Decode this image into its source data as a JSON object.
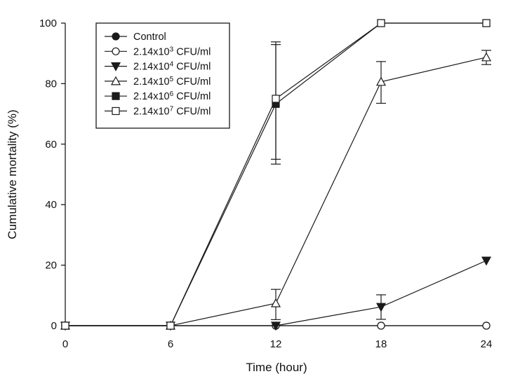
{
  "chart_data": {
    "type": "line",
    "title": "",
    "xlabel": "Time (hour)",
    "ylabel": "Cumulative mortality (%)",
    "x": [
      0,
      6,
      12,
      18,
      24
    ],
    "xticks": [
      "0",
      "6",
      "12",
      "18",
      "24"
    ],
    "yticks": [
      "0",
      "20",
      "40",
      "60",
      "80",
      "100"
    ],
    "xlim": [
      0,
      24
    ],
    "ylim": [
      0,
      100
    ],
    "grid": false,
    "legend_position": "upper left",
    "series": [
      {
        "name": "Control",
        "sup": "",
        "marker": "filled-circle",
        "values": [
          0,
          0,
          0,
          0,
          0
        ],
        "err_low": [
          null,
          null,
          null,
          null,
          null
        ],
        "err_high": [
          null,
          null,
          null,
          null,
          null
        ]
      },
      {
        "name": "2.14x10",
        "sup": "3",
        "unit": " CFU/ml",
        "marker": "open-circle",
        "values": [
          0,
          0,
          0,
          0,
          0
        ],
        "err_low": [
          null,
          null,
          null,
          null,
          null
        ],
        "err_high": [
          null,
          null,
          null,
          null,
          null
        ]
      },
      {
        "name": "2.14x10",
        "sup": "4",
        "unit": " CFU/ml",
        "marker": "filled-triangle-down",
        "values": [
          0,
          0,
          0,
          6.2,
          21.5
        ],
        "err_low": [
          null,
          null,
          null,
          2.1,
          null
        ],
        "err_high": [
          null,
          null,
          null,
          10.2,
          null
        ]
      },
      {
        "name": "2.14x10",
        "sup": "5",
        "unit": " CFU/ml",
        "marker": "open-triangle-up",
        "values": [
          0,
          0,
          7.4,
          80.6,
          88.7
        ],
        "err_low": [
          null,
          null,
          2.0,
          73.5,
          86.3
        ],
        "err_high": [
          null,
          null,
          12.0,
          87.3,
          91.0
        ]
      },
      {
        "name": "2.14x10",
        "sup": "6",
        "unit": " CFU/ml",
        "marker": "filled-square",
        "values": [
          0,
          0,
          73.3,
          100,
          100
        ],
        "err_low": [
          null,
          null,
          53.4,
          null,
          null
        ],
        "err_high": [
          null,
          null,
          92.9,
          null,
          null
        ]
      },
      {
        "name": "2.14x10",
        "sup": "7",
        "unit": " CFU/ml",
        "marker": "open-square",
        "values": [
          0,
          0,
          75.0,
          100,
          100
        ],
        "err_low": [
          null,
          null,
          55.0,
          null,
          null
        ],
        "err_high": [
          null,
          null,
          93.8,
          null,
          null
        ]
      }
    ]
  },
  "legend": {
    "items": [
      {
        "label": "Control",
        "sup": "",
        "unit": ""
      },
      {
        "label": "2.14x10",
        "sup": "3",
        "unit": " CFU/ml"
      },
      {
        "label": "2.14x10",
        "sup": "4",
        "unit": " CFU/ml"
      },
      {
        "label": "2.14x10",
        "sup": "5",
        "unit": " CFU/ml"
      },
      {
        "label": "2.14x10",
        "sup": "6",
        "unit": " CFU/ml"
      },
      {
        "label": "2.14x10",
        "sup": "7",
        "unit": " CFU/ml"
      }
    ]
  },
  "colors": {
    "line": "#1a1a1a",
    "background": "#ffffff"
  }
}
